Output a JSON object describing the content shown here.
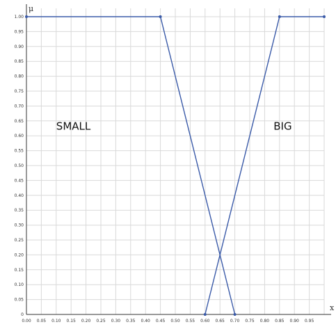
{
  "chart_data": {
    "type": "line",
    "title": "",
    "xlabel": "x",
    "ylabel": "μ",
    "xlim": [
      0,
      1
    ],
    "ylim": [
      0,
      1
    ],
    "grid": true,
    "legend": "none",
    "x_ticks": [
      "0.00",
      "0.05",
      "0.10",
      "0.15",
      "0.20",
      "0.25",
      "0.30",
      "0.35",
      "0.40",
      "0.45",
      "0.50",
      "0.55",
      "0.60",
      "0.65",
      "0.70",
      "0.75",
      "0.80",
      "0.85",
      "0.90",
      "0.95"
    ],
    "y_ticks": [
      "1.00",
      "0.95",
      "0.90",
      "0.85",
      "0.80",
      "0.75",
      "0.70",
      "0.65",
      "0.60",
      "0.55",
      "0.50",
      "0.45",
      "0.40",
      "0.35",
      "0.30",
      "0.25",
      "0.20",
      "0.15",
      "0.10",
      "0.05",
      "0"
    ],
    "series": [
      {
        "name": "SMALL",
        "x": [
          0.0,
          0.45,
          0.7
        ],
        "y": [
          1.0,
          1.0,
          0.0
        ]
      },
      {
        "name": "BIG",
        "x": [
          0.6,
          0.85,
          1.0
        ],
        "y": [
          0.0,
          1.0,
          1.0
        ]
      }
    ],
    "annotations": [
      {
        "text": "SMALL",
        "x": 0.1,
        "y": 0.62
      },
      {
        "text": "BIG",
        "x": 0.83,
        "y": 0.62
      }
    ],
    "colors": {
      "line": "#3a5aa8",
      "grid": "#d9d9d9",
      "axis": "#333333"
    }
  }
}
